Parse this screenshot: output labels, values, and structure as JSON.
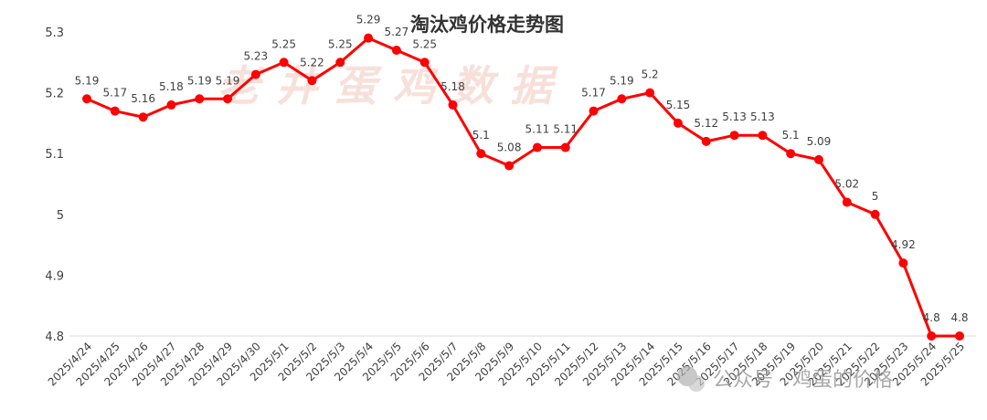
{
  "chart_data": {
    "type": "line",
    "title": "淘汰鸡价格走势图",
    "xlabel": "",
    "ylabel": "",
    "ylim": [
      4.8,
      5.3
    ],
    "yticks": [
      "4.8",
      "4.9",
      "5",
      "5.1",
      "5.2",
      "5.3"
    ],
    "grid": false,
    "legend": "none",
    "line_color": "#ff0000",
    "categories": [
      "2025/4/24",
      "2025/4/25",
      "2025/4/26",
      "2025/4/27",
      "2025/4/28",
      "2025/4/29",
      "2025/4/30",
      "2025/5/1",
      "2025/5/2",
      "2025/5/3",
      "2025/5/4",
      "2025/5/5",
      "2025/5/6",
      "2025/5/7",
      "2025/5/8",
      "2025/5/9",
      "2025/5/10",
      "2025/5/11",
      "2025/5/12",
      "2025/5/13",
      "2025/5/14",
      "2025/5/15",
      "2025/5/16",
      "2025/5/17",
      "2025/5/18",
      "2025/5/19",
      "2025/5/20",
      "2025/5/21",
      "2025/5/22",
      "2025/5/23",
      "2025/5/24",
      "2025/5/25"
    ],
    "values": [
      5.19,
      5.17,
      5.16,
      5.18,
      5.19,
      5.19,
      5.23,
      5.25,
      5.22,
      5.25,
      5.29,
      5.27,
      5.25,
      5.18,
      5.1,
      5.08,
      5.11,
      5.11,
      5.17,
      5.19,
      5.2,
      5.15,
      5.12,
      5.13,
      5.13,
      5.1,
      5.09,
      5.02,
      5,
      4.92,
      4.8,
      4.8
    ],
    "data_labels": [
      "5.19",
      "5.17",
      "5.16",
      "5.18",
      "5.19",
      "5.19",
      "5.23",
      "5.25",
      "5.22",
      "5.25",
      "5.29",
      "5.27",
      "5.25",
      "5.18",
      "5.1",
      "5.08",
      "5.11",
      "5.11",
      "5.17",
      "5.19",
      "5.2",
      "5.15",
      "5.12",
      "5.13",
      "5.13",
      "5.1",
      "5.09",
      "5.02",
      "5",
      "4.92",
      "4.8",
      "4.8"
    ]
  },
  "watermark_text": "老井蛋鸡数据",
  "source_mark": "公众号 · 鸡蛋的价格"
}
